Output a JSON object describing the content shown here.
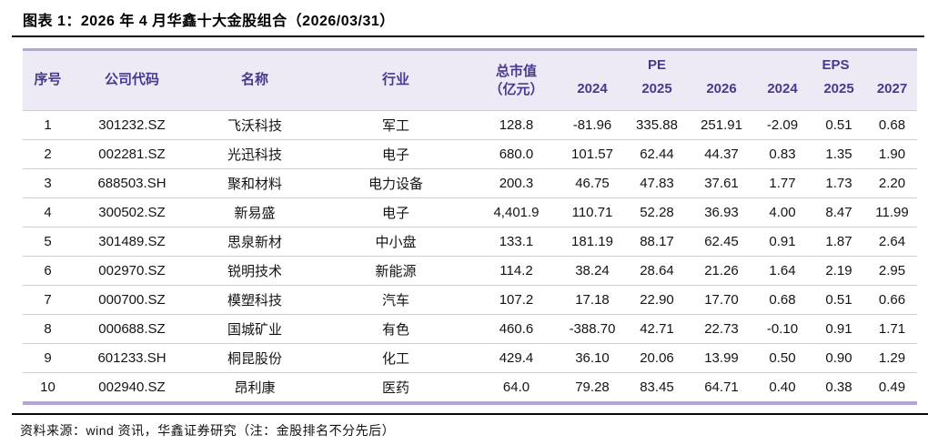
{
  "figure": {
    "title": "图表 1：2026 年 4 月华鑫十大金股组合（2026/03/31）",
    "source_note": "资料来源：wind 资讯，华鑫证券研究（注：金股排名不分先后）"
  },
  "table": {
    "headers": {
      "index": "序号",
      "code": "公司代码",
      "name": "名称",
      "industry": "行业",
      "mktcap_line1": "总市值",
      "mktcap_line2": "（亿元）",
      "pe_group": "PE",
      "eps_group": "EPS",
      "years": [
        "2024",
        "2025",
        "2026",
        "2024",
        "2025",
        "2027"
      ]
    }
  },
  "chart_data": {
    "type": "table",
    "title": "图表 1：2026 年 4 月华鑫十大金股组合（2026/03/31）",
    "column_groups": [
      {
        "label": "PE",
        "columns": [
          "2024",
          "2025",
          "2026"
        ]
      },
      {
        "label": "EPS",
        "columns": [
          "2024",
          "2025",
          "2027"
        ]
      }
    ],
    "columns": [
      "序号",
      "公司代码",
      "名称",
      "行业",
      "总市值（亿元）",
      "PE 2024",
      "PE 2025",
      "PE 2026",
      "EPS 2024",
      "EPS 2025",
      "EPS 2027"
    ],
    "rows": [
      [
        "1",
        "301232.SZ",
        "飞沃科技",
        "军工",
        "128.8",
        "-81.96",
        "335.88",
        "251.91",
        "-2.09",
        "0.51",
        "0.68"
      ],
      [
        "2",
        "002281.SZ",
        "光迅科技",
        "电子",
        "680.0",
        "101.57",
        "62.44",
        "44.37",
        "0.83",
        "1.35",
        "1.90"
      ],
      [
        "3",
        "688503.SH",
        "聚和材料",
        "电力设备",
        "200.3",
        "46.75",
        "47.83",
        "37.61",
        "1.77",
        "1.73",
        "2.20"
      ],
      [
        "4",
        "300502.SZ",
        "新易盛",
        "电子",
        "4,401.9",
        "110.71",
        "52.28",
        "36.93",
        "4.00",
        "8.47",
        "11.99"
      ],
      [
        "5",
        "301489.SZ",
        "思泉新材",
        "中小盘",
        "133.1",
        "181.19",
        "88.17",
        "62.45",
        "0.91",
        "1.87",
        "2.64"
      ],
      [
        "6",
        "002970.SZ",
        "锐明技术",
        "新能源",
        "114.2",
        "38.24",
        "28.64",
        "21.26",
        "1.64",
        "2.19",
        "2.95"
      ],
      [
        "7",
        "000700.SZ",
        "模塑科技",
        "汽车",
        "107.2",
        "17.18",
        "22.90",
        "17.70",
        "0.68",
        "0.51",
        "0.66"
      ],
      [
        "8",
        "000688.SZ",
        "国城矿业",
        "有色",
        "460.6",
        "-388.70",
        "42.71",
        "22.73",
        "-0.10",
        "0.91",
        "1.71"
      ],
      [
        "9",
        "601233.SH",
        "桐昆股份",
        "化工",
        "429.4",
        "36.10",
        "20.06",
        "13.99",
        "0.50",
        "0.90",
        "1.29"
      ],
      [
        "10",
        "002940.SZ",
        "昂利康",
        "医药",
        "64.0",
        "79.28",
        "83.45",
        "64.71",
        "0.40",
        "0.38",
        "0.49"
      ]
    ]
  },
  "colors": {
    "header_bg": "#edeaf5",
    "header_text": "#473a8e",
    "accent_border": "#b6a3d8",
    "row_divider": "#dcc7e3",
    "title_text": "#000000",
    "body_text": "#141414"
  }
}
